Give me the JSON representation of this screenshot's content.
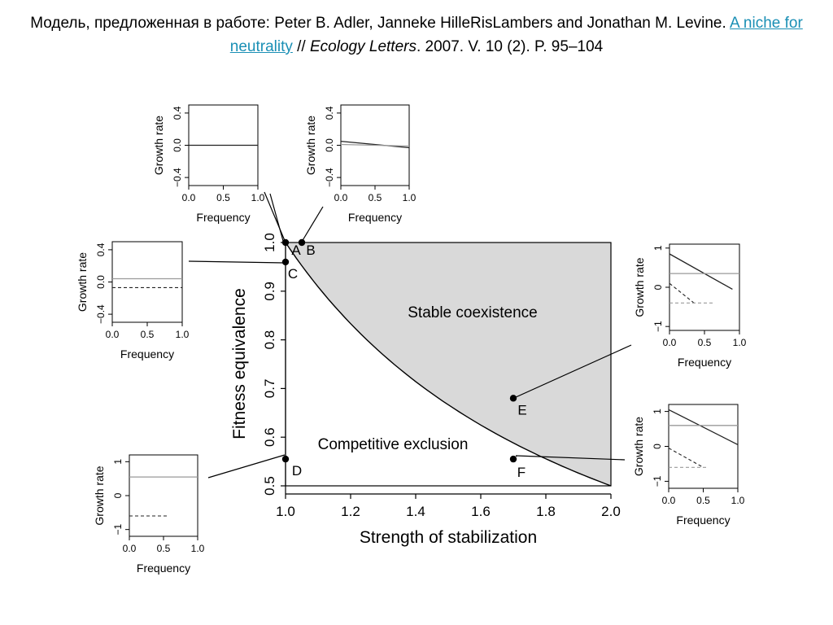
{
  "citation": {
    "prefix": "Модель, предложенная в работе: Peter B. Adler, Janneke HilleRisLambers and Jonathan M. Levine.",
    "link_text": "A niche for neutrality",
    "separator": "//",
    "journal": "Ecology Letters",
    "details": ". 2007. V. 10 (2). P. 95–104"
  },
  "chart_data": [
    {
      "type": "area",
      "xlabel": "Strength of stabilization",
      "ylabel": "Fitness equivalence",
      "xlim": [
        1.0,
        2.0
      ],
      "ylim": [
        0.5,
        1.0
      ],
      "x_ticks": [
        "1.0",
        "1.2",
        "1.4",
        "1.6",
        "1.8",
        "2.0"
      ],
      "y_ticks": [
        "0.5",
        "0.6",
        "0.7",
        "0.8",
        "0.9",
        "1.0"
      ],
      "regions": [
        "Stable coexistence",
        "Competitive exclusion"
      ],
      "boundary": {
        "x": [
          1.0,
          1.2,
          1.4,
          1.6,
          1.8,
          2.0
        ],
        "y": [
          1.0,
          0.833,
          0.714,
          0.625,
          0.556,
          0.5
        ]
      },
      "fill_color": "#d9d9d9",
      "points": [
        {
          "label": "A",
          "x": 1.0,
          "y": 1.0
        },
        {
          "label": "B",
          "x": 1.05,
          "y": 1.0
        },
        {
          "label": "C",
          "x": 1.0,
          "y": 0.96
        },
        {
          "label": "D",
          "x": 1.0,
          "y": 0.555
        },
        {
          "label": "E",
          "x": 1.7,
          "y": 0.68
        },
        {
          "label": "F",
          "x": 1.7,
          "y": 0.555
        }
      ]
    },
    {
      "type": "line",
      "point": "A",
      "xlabel": "Frequency",
      "ylabel": "Growth rate",
      "xlim": [
        0,
        1
      ],
      "ylim": [
        -0.5,
        0.5
      ],
      "x_ticks": [
        "0.0",
        "0.5",
        "1.0"
      ],
      "y_ticks": [
        "0.4",
        "0.0",
        "−0.4"
      ],
      "series": [
        {
          "x": [
            0,
            1
          ],
          "y": [
            0,
            0
          ],
          "style": "solid"
        },
        {
          "x": [
            0,
            1
          ],
          "y": [
            0,
            0
          ],
          "style": "dashed"
        }
      ]
    },
    {
      "type": "line",
      "point": "B",
      "xlabel": "Frequency",
      "ylabel": "Growth rate",
      "xlim": [
        0,
        1
      ],
      "ylim": [
        -0.5,
        0.5
      ],
      "x_ticks": [
        "0.0",
        "0.5",
        "1.0"
      ],
      "y_ticks": [
        "0.4",
        "0.0",
        "−0.4"
      ],
      "series": [
        {
          "x": [
            0,
            1
          ],
          "y": [
            0.05,
            -0.03
          ],
          "style": "solid"
        },
        {
          "x": [
            0,
            1
          ],
          "y": [
            0.01,
            -0.01
          ],
          "style": "gray"
        }
      ]
    },
    {
      "type": "line",
      "point": "C",
      "xlabel": "Frequency",
      "ylabel": "Growth rate",
      "xlim": [
        0,
        1
      ],
      "ylim": [
        -0.5,
        0.5
      ],
      "x_ticks": [
        "0.0",
        "0.5",
        "1.0"
      ],
      "y_ticks": [
        "0.4",
        "0.0",
        "−0.4"
      ],
      "series": [
        {
          "x": [
            0,
            1
          ],
          "y": [
            0.04,
            0.04
          ],
          "style": "gray"
        },
        {
          "x": [
            0,
            1
          ],
          "y": [
            -0.07,
            -0.07
          ],
          "style": "dashed"
        }
      ]
    },
    {
      "type": "line",
      "point": "D",
      "xlabel": "Frequency",
      "ylabel": "Growth rate",
      "xlim": [
        0,
        1
      ],
      "ylim": [
        -1.2,
        1.2
      ],
      "x_ticks": [
        "0.0",
        "0.5",
        "1.0"
      ],
      "y_ticks": [
        "1",
        "0",
        "−1"
      ],
      "series": [
        {
          "x": [
            0,
            1
          ],
          "y": [
            0.55,
            0.55
          ],
          "style": "gray"
        },
        {
          "x": [
            0,
            0.55
          ],
          "y": [
            -0.6,
            -0.6
          ],
          "style": "dashed"
        }
      ]
    },
    {
      "type": "line",
      "point": "E",
      "xlabel": "Frequency",
      "ylabel": "Growth rate",
      "xlim": [
        0,
        1
      ],
      "ylim": [
        -1.1,
        1.1
      ],
      "x_ticks": [
        "0.0",
        "0.5",
        "1.0"
      ],
      "y_ticks": [
        "1",
        "0",
        "−1"
      ],
      "series": [
        {
          "x": [
            0,
            0.9
          ],
          "y": [
            0.85,
            -0.05
          ],
          "style": "solid"
        },
        {
          "x": [
            0,
            1
          ],
          "y": [
            0.35,
            0.35
          ],
          "style": "gray"
        },
        {
          "x": [
            0,
            0.35
          ],
          "y": [
            0.1,
            -0.4
          ],
          "style": "dashed"
        },
        {
          "x": [
            0,
            0.65
          ],
          "y": [
            -0.4,
            -0.4
          ],
          "style": "graydashed"
        }
      ]
    },
    {
      "type": "line",
      "point": "F",
      "xlabel": "Frequency",
      "ylabel": "Growth rate",
      "xlim": [
        0,
        1
      ],
      "ylim": [
        -1.2,
        1.2
      ],
      "x_ticks": [
        "0.0",
        "0.5",
        "1.0"
      ],
      "y_ticks": [
        "1",
        "0",
        "−1"
      ],
      "series": [
        {
          "x": [
            0,
            1
          ],
          "y": [
            1.05,
            0.05
          ],
          "style": "solid"
        },
        {
          "x": [
            0,
            1
          ],
          "y": [
            0.6,
            0.6
          ],
          "style": "gray"
        },
        {
          "x": [
            0,
            0.5
          ],
          "y": [
            -0.05,
            -0.6
          ],
          "style": "dashed"
        },
        {
          "x": [
            0,
            0.55
          ],
          "y": [
            -0.6,
            -0.6
          ],
          "style": "graydashed"
        }
      ]
    }
  ]
}
